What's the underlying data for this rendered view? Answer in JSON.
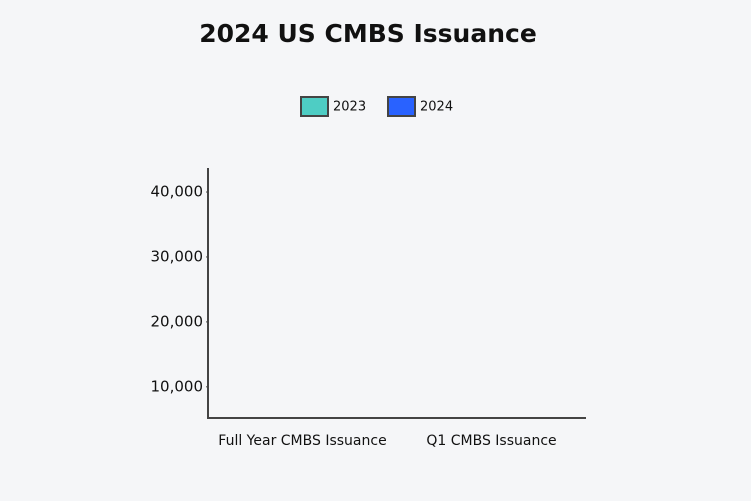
{
  "chart_data": {
    "type": "bar",
    "title": "2024 US CMBS Issuance",
    "categories": [
      "Full Year CMBS Issuance",
      "Q1 CMBS Issuance"
    ],
    "series": [
      {
        "name": "2023",
        "color": "#4ecdc4",
        "values": [
          null,
          null
        ]
      },
      {
        "name": "2024",
        "color": "#2962ff",
        "values": [
          null,
          null
        ]
      }
    ],
    "ylim": [
      5200,
      43700
    ],
    "yticks": [
      {
        "value": 10000,
        "label": "10,000"
      },
      {
        "value": 20000,
        "label": "20,000"
      },
      {
        "value": 30000,
        "label": "30,000"
      },
      {
        "value": 40000,
        "label": "40,000"
      }
    ],
    "legend": "top",
    "grid": false
  }
}
